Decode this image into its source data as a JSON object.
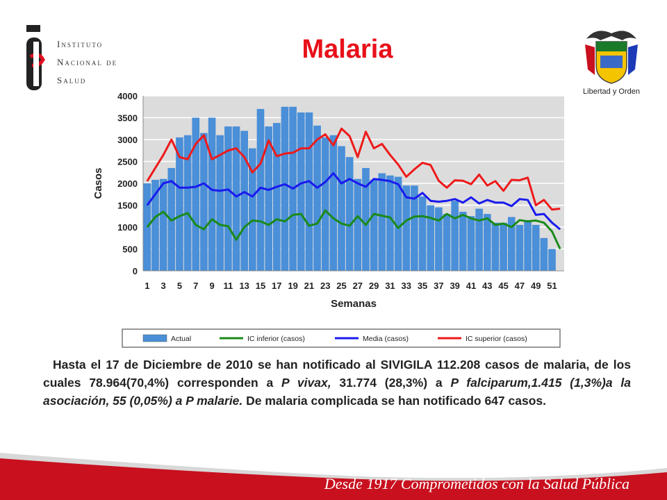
{
  "header": {
    "institute_lines": [
      "Instituto",
      "Nacional de",
      "Salud"
    ],
    "title": "Malaria",
    "coat_caption": "Libertad y Orden"
  },
  "chart_data": {
    "type": "bar",
    "xlabel": "Semanas",
    "ylabel": "Casos",
    "ylim": [
      0,
      4000
    ],
    "yticks": [
      0,
      500,
      1000,
      1500,
      2000,
      2500,
      3000,
      3500,
      4000
    ],
    "xtick_labels": [
      "1",
      "3",
      "5",
      "7",
      "9",
      "11",
      "13",
      "15",
      "17",
      "19",
      "21",
      "23",
      "25",
      "27",
      "29",
      "31",
      "33",
      "35",
      "37",
      "39",
      "41",
      "43",
      "45",
      "47",
      "49",
      "51"
    ],
    "x": [
      1,
      2,
      3,
      4,
      5,
      6,
      7,
      8,
      9,
      10,
      11,
      12,
      13,
      14,
      15,
      16,
      17,
      18,
      19,
      20,
      21,
      22,
      23,
      24,
      25,
      26,
      27,
      28,
      29,
      30,
      31,
      32,
      33,
      34,
      35,
      36,
      37,
      38,
      39,
      40,
      41,
      42,
      43,
      44,
      45,
      46,
      47,
      48,
      49,
      50,
      51,
      52
    ],
    "series": [
      {
        "name": "Actual",
        "kind": "bar",
        "color": "#4a8fd8",
        "values": [
          2000,
          2080,
          2100,
          2350,
          3050,
          3100,
          3500,
          3150,
          3500,
          3100,
          3300,
          3300,
          3200,
          2800,
          3700,
          3300,
          3380,
          3750,
          3750,
          3620,
          3620,
          3320,
          3050,
          3100,
          2850,
          2600,
          2100,
          2350,
          2080,
          2230,
          2180,
          2150,
          1950,
          1950,
          1700,
          1500,
          1450,
          1300,
          1600,
          1350,
          1250,
          1420,
          1300,
          1100,
          1100,
          1230,
          1050,
          1160,
          1050,
          750,
          500,
          null
        ]
      },
      {
        "name": "IC inferior (casos)",
        "kind": "line",
        "color": "#1a8a1a",
        "values": [
          1000,
          1230,
          1350,
          1150,
          1250,
          1320,
          1050,
          950,
          1180,
          1050,
          1020,
          710,
          1000,
          1150,
          1130,
          1050,
          1180,
          1130,
          1280,
          1300,
          1030,
          1080,
          1380,
          1200,
          1080,
          1030,
          1250,
          1050,
          1300,
          1260,
          1220,
          980,
          1150,
          1240,
          1250,
          1210,
          1150,
          1300,
          1200,
          1280,
          1200,
          1150,
          1200,
          1050,
          1080,
          1000,
          1160,
          1130,
          1150,
          1100,
          900,
          500
        ]
      },
      {
        "name": "Media (casos)",
        "kind": "line",
        "color": "#1a1aee",
        "values": [
          1500,
          1750,
          2000,
          2050,
          1900,
          1900,
          1920,
          2000,
          1850,
          1830,
          1860,
          1700,
          1800,
          1700,
          1900,
          1850,
          1920,
          1980,
          1880,
          2000,
          2050,
          1900,
          2030,
          2230,
          2000,
          2100,
          2000,
          1920,
          2100,
          2080,
          2050,
          1980,
          1680,
          1650,
          1780,
          1600,
          1580,
          1600,
          1640,
          1560,
          1680,
          1540,
          1620,
          1560,
          1560,
          1480,
          1640,
          1620,
          1280,
          1300,
          1100,
          950
        ]
      },
      {
        "name": "IC superior (casos)",
        "kind": "line",
        "color": "#ee1a1a",
        "values": [
          2050,
          2350,
          2650,
          3000,
          2600,
          2550,
          2900,
          3100,
          2550,
          2650,
          2750,
          2800,
          2600,
          2250,
          2450,
          2980,
          2620,
          2680,
          2700,
          2800,
          2800,
          3000,
          3120,
          2870,
          3250,
          3080,
          2600,
          3180,
          2800,
          2900,
          2650,
          2430,
          2150,
          2320,
          2470,
          2420,
          2060,
          1900,
          2070,
          2060,
          1980,
          2200,
          1950,
          2050,
          1830,
          2080,
          2070,
          2130,
          1500,
          1620,
          1400,
          1420
        ]
      }
    ],
    "legend": {
      "position": "bottom",
      "entries": [
        "Actual",
        "IC inferior (casos)",
        "Media (casos)",
        "IC superior (casos)"
      ]
    },
    "grid": true,
    "plot_background": "#dcdcdc"
  },
  "body": {
    "p1": "Hasta el 17 de Diciembre de 2010 se han notificado al SIVIGILA 112.208 casos de malaria, de los cuales 78.964(70,4%) corresponden a ",
    "i1": "P vivax,",
    "p2": " 31.774 (28,3%) a ",
    "i2": "P falciparum,1.415 (1,3%)a la asociación, 55 (0,05%) a P malarie.",
    "p3": " De malaria complicada se han notificado 647 casos."
  },
  "footer": {
    "text": "Desde 1917 Comprometidos con la Salud Pública",
    "color": "#c8101e"
  }
}
